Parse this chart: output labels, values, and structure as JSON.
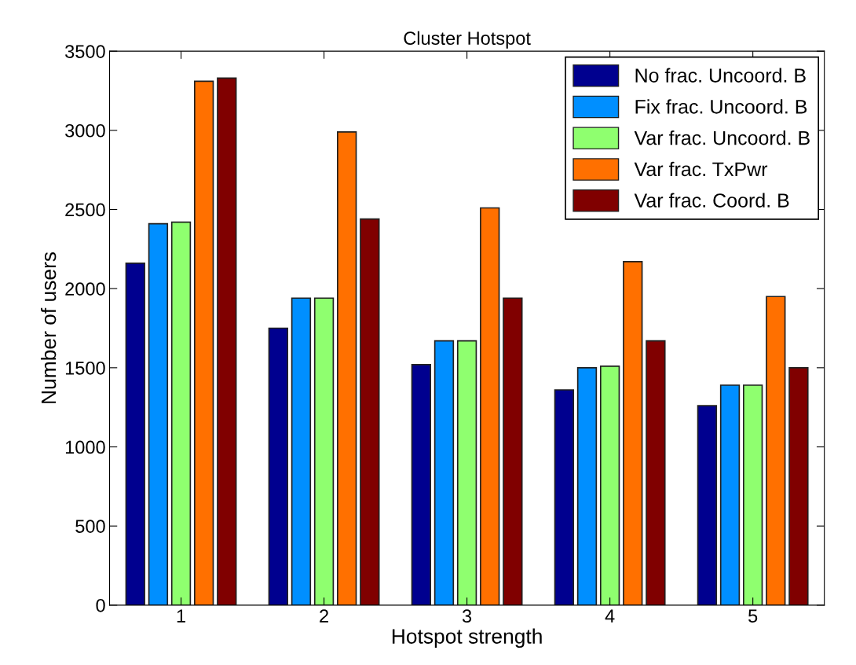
{
  "chart_data": {
    "type": "bar",
    "title": "Cluster Hotspot",
    "xlabel": "Hotspot strength",
    "ylabel": "Number of users",
    "categories": [
      "1",
      "2",
      "3",
      "4",
      "5"
    ],
    "series": [
      {
        "name": "No frac. Uncoord. B",
        "color": "#00008f",
        "values": [
          2160,
          1750,
          1520,
          1360,
          1260
        ]
      },
      {
        "name": "Fix frac. Uncoord. B",
        "color": "#008fff",
        "values": [
          2410,
          1940,
          1670,
          1500,
          1390
        ]
      },
      {
        "name": "Var frac. Uncoord. B",
        "color": "#8fff6f",
        "values": [
          2420,
          1940,
          1670,
          1510,
          1390
        ]
      },
      {
        "name": "Var frac. TxPwr",
        "color": "#ff7000",
        "values": [
          3310,
          2990,
          2510,
          2170,
          1950
        ]
      },
      {
        "name": "Var frac. Coord. B",
        "color": "#800000",
        "values": [
          3330,
          2440,
          1940,
          1670,
          1500
        ]
      }
    ],
    "ylim": [
      0,
      3500
    ],
    "yticks": [
      0,
      500,
      1000,
      1500,
      2000,
      2500,
      3000,
      3500
    ],
    "grid": false,
    "legend": "top right"
  }
}
